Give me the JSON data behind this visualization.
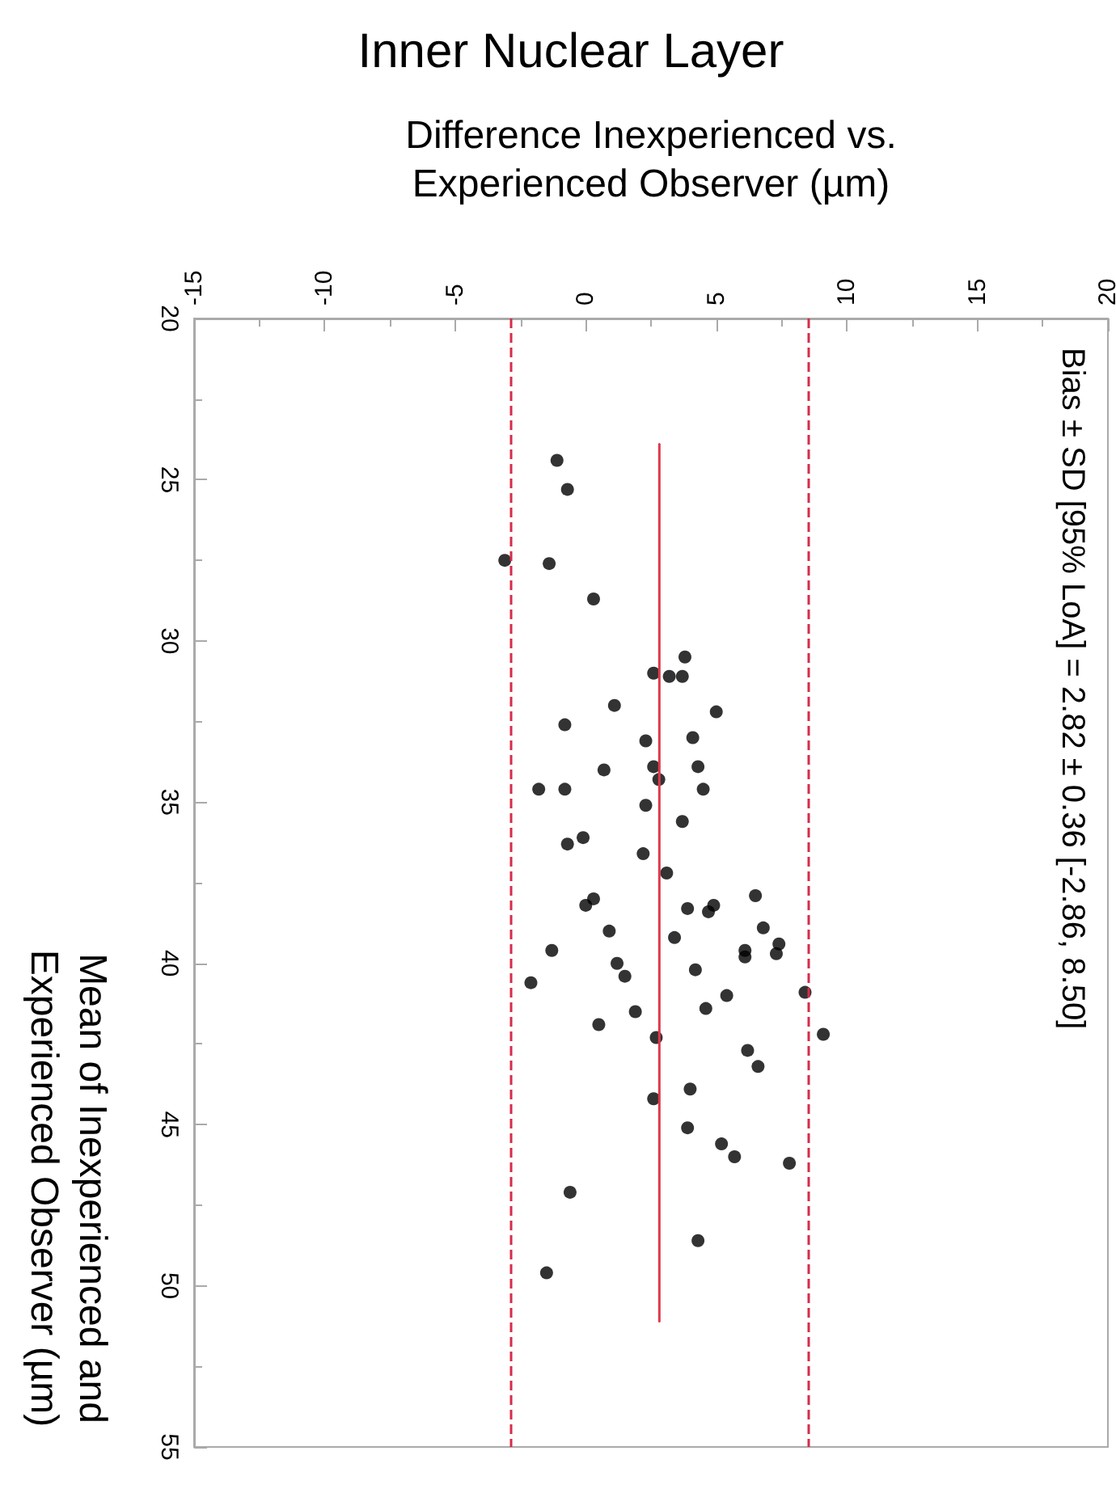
{
  "chart_data": {
    "type": "scatter",
    "title": "Inner Nuclear Layer",
    "xlabel": "Difference Inexperienced vs. Experienced Observer (µm)",
    "ylabel": "Mean of Inexperienced and Experienced Observer (µm)",
    "annotations": [
      "Bias ± SD [95% LoA] = 2.82 ± 0.36 [-2.86, 8.50]"
    ],
    "xlim": [
      -15,
      20
    ],
    "xticks": [
      -15,
      -10,
      -5,
      0,
      5,
      10,
      15,
      20
    ],
    "ylim": [
      55,
      20
    ],
    "yticks": [
      20,
      25,
      30,
      35,
      40,
      45,
      50,
      55
    ],
    "grid": false,
    "marker": "circle",
    "series": [
      {
        "color": "#000000",
        "x": [
          -1.1,
          -0.7,
          -3.1,
          -1.4,
          0.3,
          3.8,
          2.6,
          3.2,
          3.7,
          1.1,
          5.0,
          -0.8,
          2.3,
          4.1,
          2.6,
          4.3,
          0.7,
          2.8,
          -1.8,
          -0.8,
          4.5,
          2.3,
          3.7,
          -0.1,
          -0.7,
          2.2,
          3.1,
          6.5,
          0.3,
          0.0,
          3.9,
          4.9,
          4.7,
          0.9,
          6.8,
          3.4,
          7.4,
          6.1,
          6.1,
          7.3,
          -1.3,
          1.2,
          4.2,
          1.5,
          -2.1,
          8.4,
          5.4,
          1.9,
          4.6,
          0.5,
          9.1,
          2.7,
          6.2,
          6.6,
          4.0,
          2.6,
          3.9,
          5.2,
          5.7,
          7.8,
          -0.6,
          4.3,
          -1.5
        ],
        "values": [
          24.4,
          25.3,
          27.5,
          27.6,
          28.7,
          30.5,
          31.0,
          31.1,
          31.1,
          32.0,
          32.2,
          32.6,
          33.1,
          33.0,
          33.9,
          33.9,
          34.0,
          34.3,
          34.6,
          34.6,
          34.6,
          35.1,
          35.6,
          36.1,
          36.3,
          36.6,
          37.2,
          37.9,
          38.0,
          38.2,
          38.3,
          38.2,
          38.4,
          39.0,
          38.9,
          39.2,
          39.4,
          39.6,
          39.8,
          39.7,
          39.6,
          40.0,
          40.2,
          40.4,
          40.6,
          40.9,
          41.0,
          41.5,
          41.4,
          41.9,
          42.2,
          42.3,
          42.7,
          43.2,
          43.9,
          44.2,
          45.1,
          45.6,
          46.0,
          46.2,
          47.1,
          48.6,
          49.6
        ]
      },
      {
        "type": "line",
        "color": "#e0394a",
        "line_style": "solid",
        "marker": "none",
        "x": [
          2.82,
          2.82
        ],
        "values": [
          23.9,
          51.1
        ]
      }
    ],
    "ref_lines": [
      {
        "axis": "x",
        "value": -2.86,
        "color": "#d62c4a",
        "line_style": "dashed"
      },
      {
        "axis": "x",
        "value": 8.5,
        "color": "#d62c4a",
        "line_style": "dashed"
      }
    ]
  }
}
